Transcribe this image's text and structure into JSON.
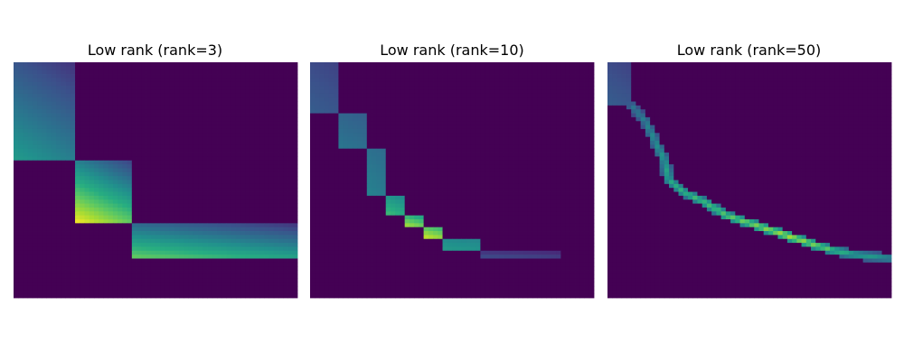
{
  "figure": {
    "panels": [
      {
        "title": "Low rank (rank=3)"
      },
      {
        "title": "Low rank (rank=10)"
      },
      {
        "title": "Low rank (rank=50)"
      }
    ]
  },
  "chart_data": [
    {
      "type": "heatmap",
      "title": "Low rank (rank=3)",
      "colormap": "viridis",
      "axes_visible": false,
      "value_range": [
        0,
        1
      ],
      "grid_size": [
        60,
        60
      ],
      "background_value": 0,
      "blocks": [
        {
          "rows": [
            0,
            25
          ],
          "cols": [
            0,
            13
          ],
          "value_range": [
            0.15,
            0.55
          ]
        },
        {
          "rows": [
            25,
            41
          ],
          "cols": [
            13,
            25
          ],
          "value_range": [
            0.2,
            1.0
          ]
        },
        {
          "rows": [
            41,
            50
          ],
          "cols": [
            25,
            60
          ],
          "value_range": [
            0.15,
            0.78
          ]
        }
      ]
    },
    {
      "type": "heatmap",
      "title": "Low rank (rank=10)",
      "colormap": "viridis",
      "axes_visible": false,
      "value_range": [
        0,
        1
      ],
      "grid_size": [
        60,
        60
      ],
      "background_value": 0,
      "blocks": [
        {
          "rows": [
            0,
            13
          ],
          "cols": [
            0,
            6
          ],
          "value_range": [
            0.2,
            0.3
          ]
        },
        {
          "rows": [
            13,
            22
          ],
          "cols": [
            6,
            12
          ],
          "value_range": [
            0.3,
            0.4
          ]
        },
        {
          "rows": [
            22,
            34
          ],
          "cols": [
            12,
            16
          ],
          "value_range": [
            0.35,
            0.45
          ]
        },
        {
          "rows": [
            34,
            39
          ],
          "cols": [
            16,
            20
          ],
          "value_range": [
            0.45,
            0.7
          ]
        },
        {
          "rows": [
            39,
            42
          ],
          "cols": [
            20,
            24
          ],
          "value_range": [
            0.55,
            0.9
          ]
        },
        {
          "rows": [
            42,
            45
          ],
          "cols": [
            24,
            28
          ],
          "value_range": [
            0.65,
            0.95
          ]
        },
        {
          "rows": [
            45,
            48
          ],
          "cols": [
            28,
            36
          ],
          "value_range": [
            0.45,
            0.55
          ]
        },
        {
          "rows": [
            48,
            50
          ],
          "cols": [
            36,
            53
          ],
          "value_range": [
            0.1,
            0.25
          ]
        }
      ]
    },
    {
      "type": "heatmap",
      "title": "Low rank (rank=50)",
      "colormap": "viridis",
      "axes_visible": false,
      "value_range": [
        0,
        1
      ],
      "grid_size": [
        60,
        60
      ],
      "background_value": 0,
      "blocks": [
        {
          "rows": [
            0,
            11
          ],
          "cols": [
            0,
            5
          ],
          "value_range": [
            0.2,
            0.3
          ]
        }
      ],
      "curve": {
        "points": [
          [
            11,
            5
          ],
          [
            15,
            8
          ],
          [
            20,
            10
          ],
          [
            25,
            12
          ],
          [
            30,
            13
          ],
          [
            33,
            16
          ],
          [
            36,
            21
          ],
          [
            39,
            25
          ],
          [
            41,
            30
          ],
          [
            43,
            35
          ],
          [
            45,
            40
          ],
          [
            47,
            45
          ],
          [
            48,
            48
          ],
          [
            49,
            52
          ],
          [
            50,
            60
          ]
        ],
        "value_range": [
          0.4,
          0.9
        ],
        "width": 1.2
      }
    }
  ]
}
